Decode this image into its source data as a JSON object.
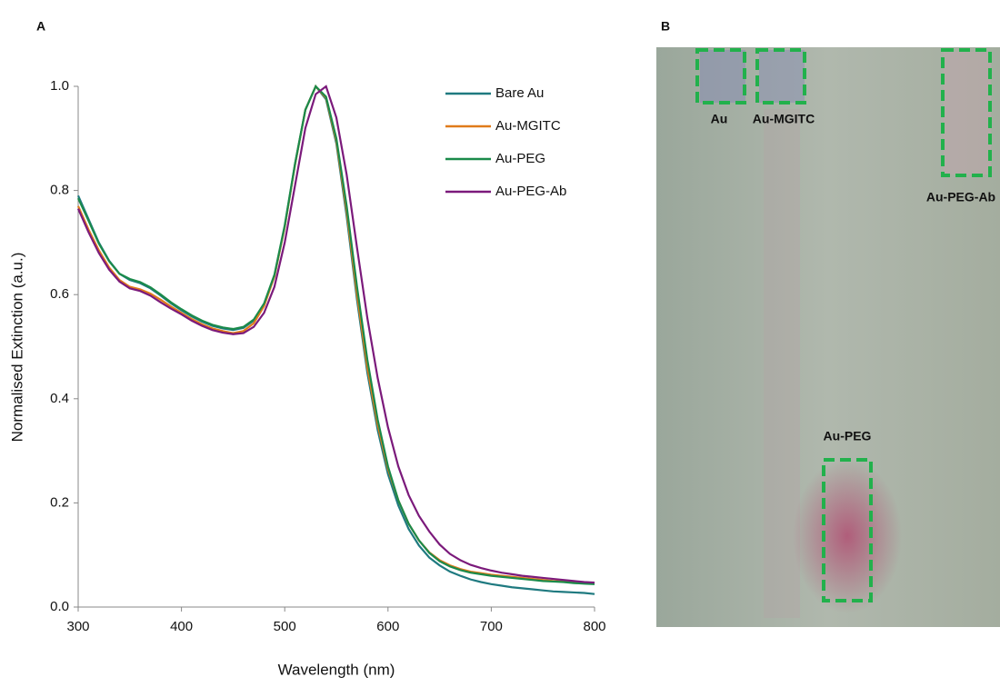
{
  "panel_labels": [
    "A",
    "B"
  ],
  "chart_data": {
    "type": "line",
    "x_label": "Wavelength (nm)",
    "y_label": "Normalised Extinction (a.u.)",
    "x": [
      300,
      310,
      320,
      330,
      340,
      350,
      360,
      370,
      380,
      390,
      400,
      410,
      420,
      430,
      440,
      450,
      460,
      470,
      480,
      490,
      500,
      510,
      520,
      530,
      540,
      550,
      560,
      570,
      580,
      590,
      600,
      610,
      620,
      630,
      640,
      650,
      660,
      670,
      680,
      690,
      700,
      710,
      720,
      730,
      740,
      750,
      760,
      770,
      780,
      790,
      800
    ],
    "series": [
      {
        "name": "Bare Au",
        "color": "#1f7a80",
        "values": [
          0.79,
          0.745,
          0.7,
          0.665,
          0.64,
          0.628,
          0.622,
          0.612,
          0.598,
          0.583,
          0.57,
          0.558,
          0.548,
          0.54,
          0.535,
          0.532,
          0.536,
          0.55,
          0.58,
          0.635,
          0.73,
          0.85,
          0.955,
          1.0,
          0.975,
          0.89,
          0.75,
          0.59,
          0.45,
          0.34,
          0.255,
          0.195,
          0.15,
          0.118,
          0.095,
          0.08,
          0.068,
          0.06,
          0.053,
          0.048,
          0.044,
          0.041,
          0.038,
          0.036,
          0.034,
          0.032,
          0.03,
          0.029,
          0.028,
          0.027,
          0.025
        ]
      },
      {
        "name": "Au-MGITC",
        "color": "#e07b1a",
        "values": [
          0.77,
          0.725,
          0.685,
          0.652,
          0.628,
          0.615,
          0.61,
          0.602,
          0.59,
          0.577,
          0.565,
          0.553,
          0.543,
          0.535,
          0.53,
          0.526,
          0.53,
          0.545,
          0.578,
          0.635,
          0.73,
          0.85,
          0.955,
          1.0,
          0.978,
          0.895,
          0.76,
          0.6,
          0.46,
          0.35,
          0.265,
          0.205,
          0.16,
          0.128,
          0.105,
          0.09,
          0.08,
          0.073,
          0.068,
          0.065,
          0.062,
          0.06,
          0.058,
          0.056,
          0.054,
          0.052,
          0.05,
          0.049,
          0.047,
          0.046,
          0.045
        ]
      },
      {
        "name": "Au-PEG",
        "color": "#1a8a4a",
        "values": [
          0.785,
          0.742,
          0.698,
          0.664,
          0.64,
          0.63,
          0.624,
          0.614,
          0.6,
          0.585,
          0.572,
          0.56,
          0.55,
          0.542,
          0.537,
          0.534,
          0.538,
          0.552,
          0.583,
          0.638,
          0.733,
          0.852,
          0.955,
          1.0,
          0.98,
          0.9,
          0.77,
          0.615,
          0.475,
          0.36,
          0.27,
          0.205,
          0.16,
          0.128,
          0.104,
          0.088,
          0.078,
          0.071,
          0.066,
          0.063,
          0.06,
          0.058,
          0.056,
          0.054,
          0.052,
          0.05,
          0.049,
          0.048,
          0.046,
          0.045,
          0.044
        ]
      },
      {
        "name": "Au-PEG-Ab",
        "color": "#7b1a7b",
        "values": [
          0.765,
          0.72,
          0.68,
          0.648,
          0.625,
          0.612,
          0.607,
          0.598,
          0.585,
          0.573,
          0.562,
          0.55,
          0.54,
          0.532,
          0.527,
          0.524,
          0.526,
          0.538,
          0.565,
          0.615,
          0.7,
          0.81,
          0.92,
          0.985,
          1.0,
          0.94,
          0.83,
          0.69,
          0.555,
          0.44,
          0.345,
          0.27,
          0.215,
          0.175,
          0.145,
          0.12,
          0.102,
          0.09,
          0.081,
          0.075,
          0.07,
          0.066,
          0.063,
          0.06,
          0.058,
          0.056,
          0.054,
          0.052,
          0.05,
          0.048,
          0.047
        ]
      }
    ],
    "xlim": [
      300,
      800
    ],
    "xticks": [
      300,
      400,
      500,
      600,
      700,
      800
    ],
    "ylim": [
      0,
      1
    ],
    "yticks": [
      {
        "value": 0,
        "label": "0.0"
      },
      0.2,
      0.4,
      0.6,
      0.8,
      {
        "value": 1,
        "label": "1.0"
      }
    ],
    "grid": false,
    "legend": "upper-right"
  },
  "gel": {
    "labels": [
      "Au",
      "Au-MGITC",
      "Au-PEG-Ab",
      "Au-PEG"
    ]
  }
}
